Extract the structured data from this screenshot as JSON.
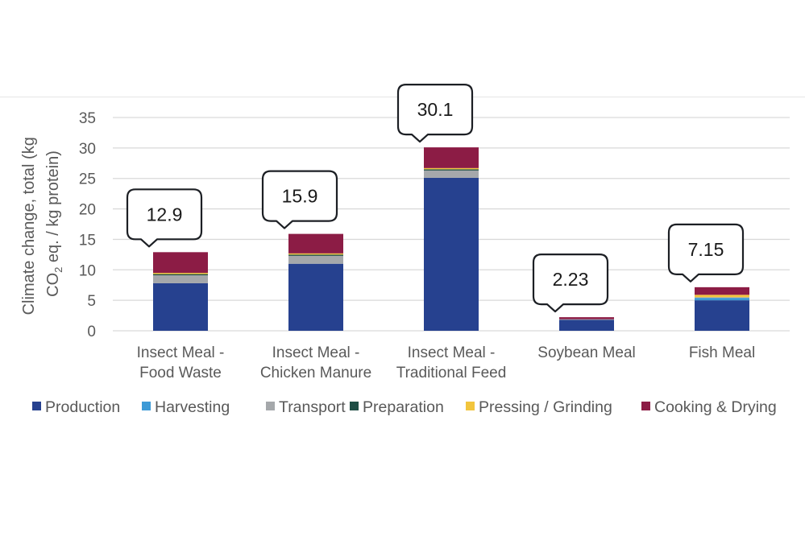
{
  "chart_data": {
    "type": "bar",
    "stacked": true,
    "title": "",
    "xlabel": "",
    "ylabel_lines": [
      "Climate change, total (kg",
      "CO2 eq. / kg protein)"
    ],
    "ylabel": "Climate change, total (kg CO2 eq. / kg protein)",
    "ylim": [
      0,
      35
    ],
    "yticks": [
      0,
      5,
      10,
      15,
      20,
      25,
      30,
      35
    ],
    "grid": true,
    "legend_position": "bottom",
    "categories": [
      [
        "Insect Meal -",
        "Food Waste"
      ],
      [
        "Insect Meal -",
        "Chicken Manure"
      ],
      [
        "Insect Meal -",
        "Traditional Feed"
      ],
      [
        "Soybean Meal"
      ],
      [
        "Fish Meal"
      ]
    ],
    "series": [
      {
        "name": "Production",
        "color": "#26418f",
        "values": [
          7.8,
          11.0,
          25.1,
          1.8,
          5.0
        ]
      },
      {
        "name": "Harvesting",
        "color": "#3d9ad6",
        "values": [
          0.0,
          0.0,
          0.0,
          0.0,
          0.4
        ]
      },
      {
        "name": "Transport",
        "color": "#a5a8ab",
        "values": [
          1.3,
          1.3,
          1.2,
          0.1,
          0.1
        ]
      },
      {
        "name": "Preparation",
        "color": "#1f4e45",
        "values": [
          0.2,
          0.2,
          0.2,
          0.0,
          0.0
        ]
      },
      {
        "name": "Pressing / Grinding",
        "color": "#f2c53d",
        "values": [
          0.2,
          0.2,
          0.2,
          0.0,
          0.4
        ]
      },
      {
        "name": "Cooking & Drying",
        "color": "#8c1c45",
        "values": [
          3.4,
          3.2,
          3.4,
          0.33,
          1.25
        ]
      }
    ],
    "totals": [
      "12.9",
      "15.9",
      "30.1",
      "2.23",
      "7.15"
    ],
    "annotations": "callout boxes above each bar showing the total"
  }
}
